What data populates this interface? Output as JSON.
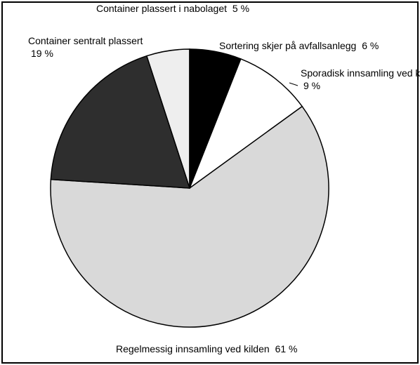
{
  "chart_data": {
    "type": "pie",
    "categories": [
      "Container plassert i nabolaget",
      "Sortering skjer på avfallsanlegg",
      "Sporadisk innsamling ved kilden",
      "Regelmessig innsamling ved kilden",
      "Container sentralt plassert"
    ],
    "values": [
      5,
      6,
      9,
      61,
      19
    ],
    "value_labels": [
      "5 %",
      "6 %",
      "9 %",
      "61 %",
      "19 %"
    ],
    "colors": [
      "#eeeeee",
      "#000000",
      "#ffffff",
      "#d9d9d9",
      "#2e2e2e"
    ]
  }
}
